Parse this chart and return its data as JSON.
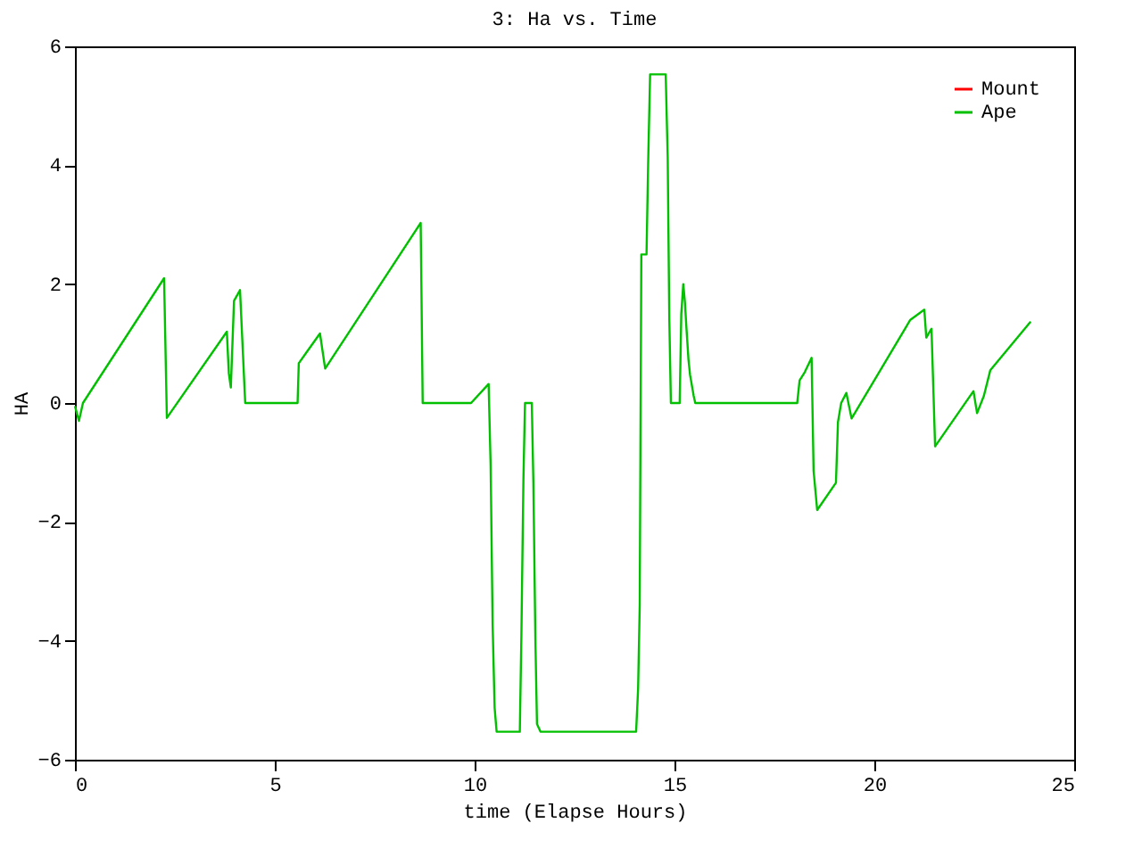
{
  "chart_data": {
    "type": "line",
    "title": "3: Ha vs. Time",
    "xlabel": "time (Elapse Hours)",
    "ylabel": "HA",
    "x": [
      0,
      0.1,
      0.2,
      2.23,
      2.3,
      3.8,
      3.85,
      3.9,
      3.98,
      4.13,
      4.26,
      5.57,
      5.6,
      5.78,
      6.13,
      6.26,
      8.65,
      8.7,
      9.91,
      10.35,
      10.4,
      10.45,
      10.5,
      10.55,
      11.13,
      11.17,
      11.22,
      11.26,
      11.43,
      11.47,
      11.52,
      11.56,
      11.65,
      14.04,
      14.09,
      14.13,
      14.17,
      14.3,
      14.34,
      14.39,
      14.78,
      14.83,
      14.87,
      14.91,
      15.13,
      15.17,
      15.22,
      15.26,
      15.3,
      15.35,
      15.39,
      15.48,
      15.52,
      18.07,
      18.13,
      18.26,
      18.43,
      18.48,
      18.57,
      19.04,
      19.09,
      19.17,
      19.3,
      19.43,
      20.9,
      21.25,
      21.3,
      21.43,
      21.52,
      22.48,
      22.57,
      22.74,
      22.9,
      23.91
    ],
    "series": [
      {
        "name": "Mount",
        "color": "#ff0000",
        "values": [
          null,
          null,
          null,
          null,
          null,
          null,
          null,
          null,
          null,
          null,
          null,
          null,
          null,
          null,
          null,
          null,
          null,
          null,
          null,
          null,
          null,
          null,
          null,
          null,
          null,
          null,
          null,
          null,
          null,
          null,
          null,
          null,
          null,
          null,
          null,
          null,
          null,
          null,
          null,
          null,
          null,
          null,
          null,
          null,
          null,
          null,
          null,
          null,
          null,
          null,
          null,
          null,
          null,
          null,
          null,
          null,
          null,
          null,
          null,
          null,
          null,
          null,
          null,
          null,
          null,
          null,
          null,
          null,
          null,
          null,
          null,
          null,
          null,
          null
        ]
      },
      {
        "name": "Ape",
        "color": "#00c000",
        "values": [
          -0.05,
          -0.3,
          0,
          2.1,
          -0.25,
          1.2,
          0.5,
          0.26,
          1.72,
          1.9,
          0,
          0,
          0.67,
          0.84,
          1.17,
          0.58,
          3.03,
          0,
          0,
          0.32,
          -1.05,
          -3.73,
          -5.13,
          -5.53,
          -5.53,
          -3.9,
          -1.3,
          0,
          0,
          -1.36,
          -4.0,
          -5.4,
          -5.53,
          -5.53,
          -4.8,
          -3.4,
          2.5,
          2.5,
          4.0,
          5.53,
          5.53,
          4.14,
          1.43,
          0,
          0,
          1.5,
          2.0,
          1.7,
          1.25,
          0.73,
          0.47,
          0.12,
          0,
          0,
          0.38,
          0.52,
          0.76,
          -1.14,
          -1.8,
          -1.34,
          -0.32,
          0,
          0.17,
          -0.26,
          1.4,
          1.57,
          1.1,
          1.25,
          -0.73,
          0.2,
          -0.17,
          0.12,
          0.55,
          1.37
        ]
      }
    ],
    "xlim": [
      0,
      25
    ],
    "xticks": [
      0,
      5,
      10,
      15,
      20,
      25
    ],
    "ylim": [
      -6,
      6
    ],
    "yticks": [
      -6,
      -4,
      -2,
      0,
      2,
      4,
      6
    ],
    "grid": false,
    "legend": "top right",
    "marker": "none",
    "line_style": "solid"
  }
}
